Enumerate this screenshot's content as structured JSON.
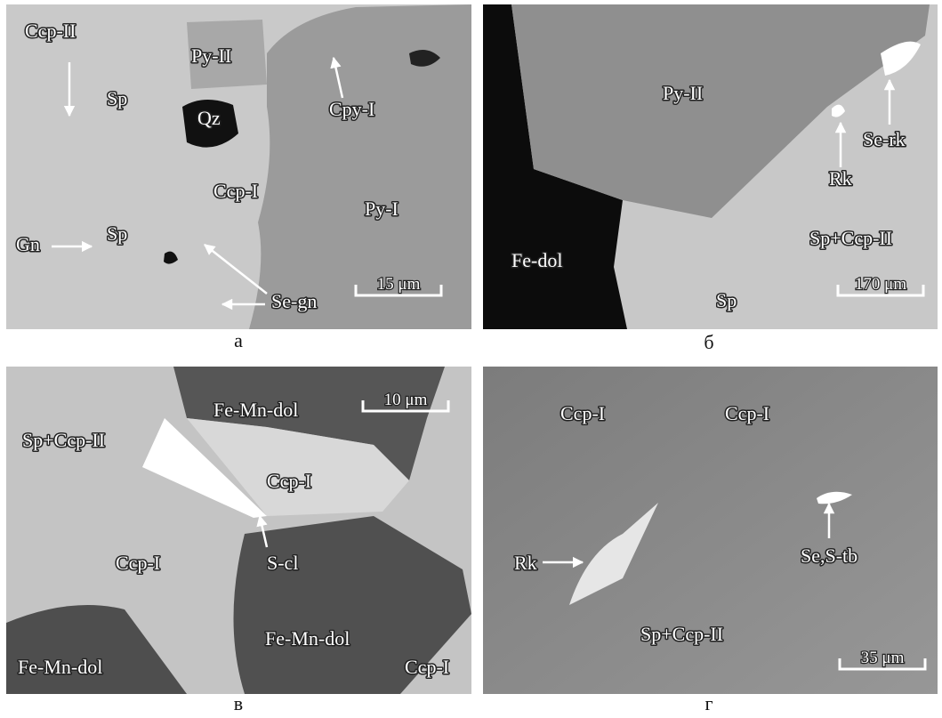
{
  "panels": [
    {
      "caption": "а",
      "scale_bar": "15 μm",
      "labels": [
        "Ccp-II",
        "Sp",
        "Py-II",
        "Qz",
        "Cpy-I",
        "Ccp-I",
        "Py-I",
        "Gn",
        "Sp",
        "Se-gn"
      ]
    },
    {
      "caption": "б",
      "scale_bar": "170 μm",
      "labels": [
        "Py-II",
        "Se-rk",
        "Rk",
        "Sp+Ccp-II",
        "Fe-dol",
        "Sp"
      ]
    },
    {
      "caption": "в",
      "scale_bar": "10 μm",
      "labels": [
        "Fe-Mn-dol",
        "Sp+Ccp-II",
        "Ccp-I",
        "S-cl",
        "Ccp-I",
        "Fe-Mn-dol",
        "Fe-Mn-dol",
        "Ccp-I"
      ]
    },
    {
      "caption": "г",
      "scale_bar": "35 μm",
      "labels": [
        "Ccp-I",
        "Ccp-I",
        "Rk",
        "Se,S-tb",
        "Sp+Ccp-II"
      ]
    }
  ]
}
